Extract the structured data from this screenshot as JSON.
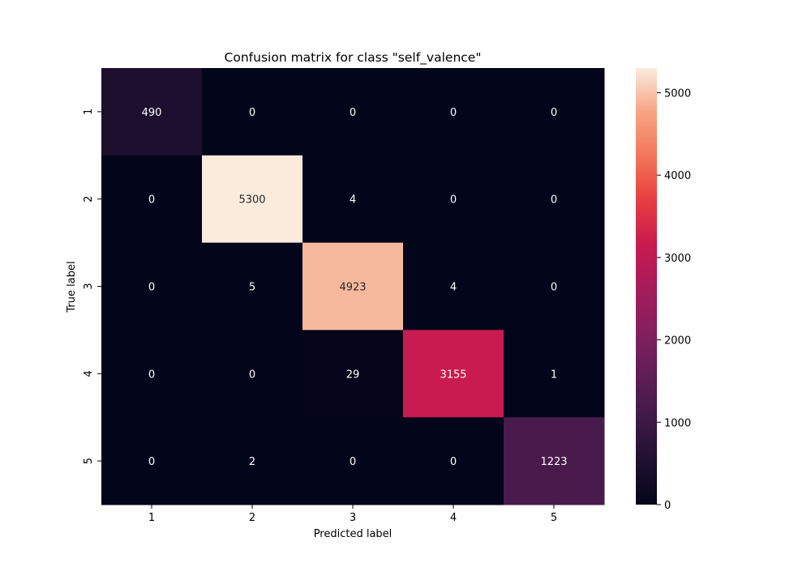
{
  "chart_data": {
    "type": "heatmap",
    "title": "Confusion matrix for class \"self_valence\"",
    "xlabel": "Predicted label",
    "ylabel": "True label",
    "x_categories": [
      "1",
      "2",
      "3",
      "4",
      "5"
    ],
    "y_categories": [
      "1",
      "2",
      "3",
      "4",
      "5"
    ],
    "values": [
      [
        490,
        0,
        0,
        0,
        0
      ],
      [
        0,
        5300,
        4,
        0,
        0
      ],
      [
        0,
        5,
        4923,
        4,
        0
      ],
      [
        0,
        0,
        29,
        3155,
        1
      ],
      [
        0,
        2,
        0,
        0,
        1223
      ]
    ],
    "colorbar": {
      "vmin": 0,
      "vmax": 5300,
      "ticks": [
        0,
        1000,
        2000,
        3000,
        4000,
        5000
      ],
      "colormap": "rocket"
    }
  }
}
